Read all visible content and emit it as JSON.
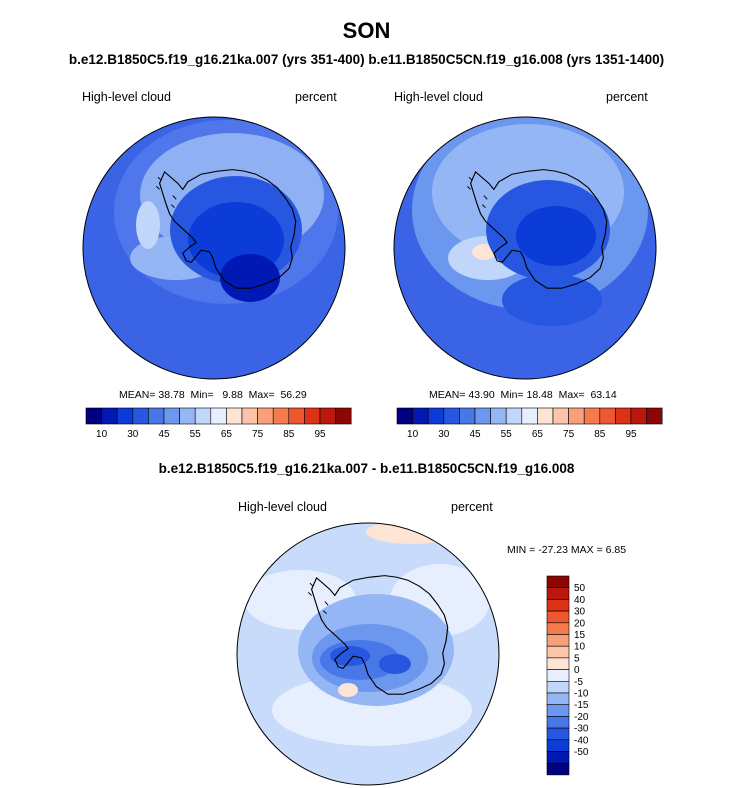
{
  "title": "SON",
  "subtitle": "b.e12.B1850C5.f19_g16.21ka.007 (yrs 351-400) b.e11.B1850C5CN.f19_g16.008 (yrs 1351-1400)",
  "diff_title": "b.e12.B1850C5.f19_g16.21ka.007 - b.e11.B1850C5CN.f19_g16.008",
  "panels": [
    {
      "variable": "High-level cloud",
      "units": "percent",
      "stats": {
        "mean_label": "MEAN=",
        "mean": "38.78",
        "min_label": "Min=",
        "min": "9.88",
        "max_label": "Max=",
        "max": "56.29"
      }
    },
    {
      "variable": "High-level cloud",
      "units": "percent",
      "stats": {
        "mean_label": "MEAN=",
        "mean": "43.90",
        "min_label": "Min=",
        "min": "18.48",
        "max_label": "Max=",
        "max": "63.14"
      }
    },
    {
      "variable": "High-level cloud",
      "units": "percent",
      "stats_text": "MIN = -27.23 MAX =   6.85"
    }
  ],
  "colorbar_horizontal": {
    "colors": [
      "#000080",
      "#0018b4",
      "#0b3cd8",
      "#2756e0",
      "#4878e8",
      "#6b97ee",
      "#94b6f4",
      "#c0d6fa",
      "#e7eefe",
      "#fde4d4",
      "#fcc4a8",
      "#f9a07a",
      "#f57a4e",
      "#ef5632",
      "#dd3216",
      "#bb170c",
      "#8c0603"
    ],
    "tick_labels": [
      "10",
      "30",
      "45",
      "55",
      "65",
      "75",
      "85",
      "95"
    ]
  },
  "colorbar_vertical": {
    "colors_top_to_bottom": [
      "#8c0603",
      "#bb170c",
      "#dd3216",
      "#ef5632",
      "#f57a4e",
      "#f9a07a",
      "#fcc4a8",
      "#fde4d4",
      "#e7eefe",
      "#c0d6fa",
      "#94b6f4",
      "#6b97ee",
      "#4878e8",
      "#2756e0",
      "#0b3cd8",
      "#0018b4",
      "#000080"
    ],
    "tick_labels": [
      "50",
      "40",
      "30",
      "20",
      "15",
      "10",
      "5",
      "0",
      "-5",
      "-10",
      "-15",
      "-20",
      "-30",
      "-40",
      "-50"
    ]
  },
  "map_colors": {
    "panel1": {
      "ocean": "#3a63e6",
      "ring": "#5078ea",
      "light": "#94b6f4",
      "pale": "#c0d6fa",
      "mid": "#2756e0",
      "dark": "#0b3cd8",
      "darker": "#0018b4"
    },
    "panel2": {
      "ocean": "#3a63e6",
      "ring": "#6b97ee",
      "light": "#94b6f4",
      "pale": "#c0d6fa",
      "peach": "#fde4d4",
      "mid": "#2756e0",
      "dark": "#0b3cd8"
    },
    "diff": {
      "ocean": "#c8dbfa",
      "light": "#e7eefe",
      "mid": "#94b6f4",
      "blue": "#6b97ee",
      "dark": "#4878e8",
      "darker": "#2756e0",
      "peach": "#fde4d4"
    }
  }
}
